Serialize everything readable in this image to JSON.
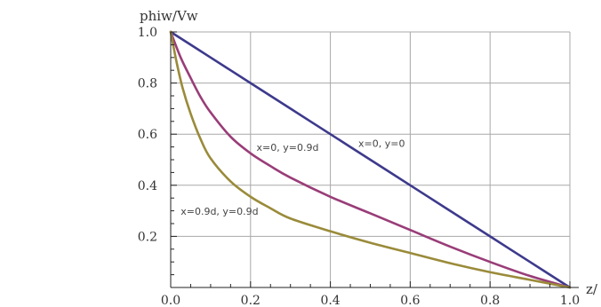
{
  "chart_data": {
    "type": "line",
    "title": "",
    "xlabel": "z/",
    "ylabel": "phiw/Vw",
    "xlim": [
      0,
      1
    ],
    "ylim": [
      0,
      1
    ],
    "grid": true,
    "x_ticks": [
      {
        "value": 0.0,
        "label": "0.0"
      },
      {
        "value": 0.2,
        "label": "0.2"
      },
      {
        "value": 0.4,
        "label": "0.4"
      },
      {
        "value": 0.6,
        "label": "0.6"
      },
      {
        "value": 0.8,
        "label": "0.8"
      },
      {
        "value": 1.0,
        "label": "1.0"
      }
    ],
    "y_ticks": [
      {
        "value": 0.2,
        "label": "0.2"
      },
      {
        "value": 0.4,
        "label": "0.4"
      },
      {
        "value": 0.6,
        "label": "0.6"
      },
      {
        "value": 0.8,
        "label": "0.8"
      },
      {
        "value": 1.0,
        "label": "1.0"
      }
    ],
    "series": [
      {
        "color": "#3d3a8c",
        "x": [
          0.0,
          0.1,
          0.2,
          0.3,
          0.4,
          0.5,
          0.6,
          0.7,
          0.8,
          0.9,
          1.0
        ],
        "y": [
          1.0,
          0.9,
          0.8,
          0.7,
          0.6,
          0.5,
          0.4,
          0.3,
          0.2,
          0.1,
          0.0
        ]
      },
      {
        "color": "#993d78",
        "x": [
          0.0,
          0.025,
          0.05,
          0.075,
          0.1,
          0.15,
          0.2,
          0.25,
          0.3,
          0.4,
          0.5,
          0.6,
          0.7,
          0.8,
          0.9,
          1.0
        ],
        "y": [
          1.0,
          0.9,
          0.82,
          0.745,
          0.685,
          0.59,
          0.525,
          0.475,
          0.43,
          0.355,
          0.29,
          0.225,
          0.16,
          0.1,
          0.045,
          0.0
        ]
      },
      {
        "color": "#9a8b3a",
        "x": [
          0.0,
          0.015,
          0.03,
          0.05,
          0.075,
          0.1,
          0.15,
          0.2,
          0.25,
          0.3,
          0.4,
          0.5,
          0.6,
          0.7,
          0.8,
          0.9,
          1.0
        ],
        "y": [
          1.0,
          0.88,
          0.78,
          0.68,
          0.58,
          0.505,
          0.415,
          0.355,
          0.31,
          0.27,
          0.22,
          0.175,
          0.135,
          0.095,
          0.06,
          0.03,
          0.0
        ]
      }
    ],
    "annotations": [
      {
        "text": "x=0, y=0",
        "x": 0.47,
        "y": 0.55
      },
      {
        "text": "x=0, y=0.9d",
        "x": 0.215,
        "y": 0.535
      },
      {
        "text": "x=0.9d, y=0.9d",
        "x": 0.025,
        "y": 0.285
      }
    ]
  }
}
